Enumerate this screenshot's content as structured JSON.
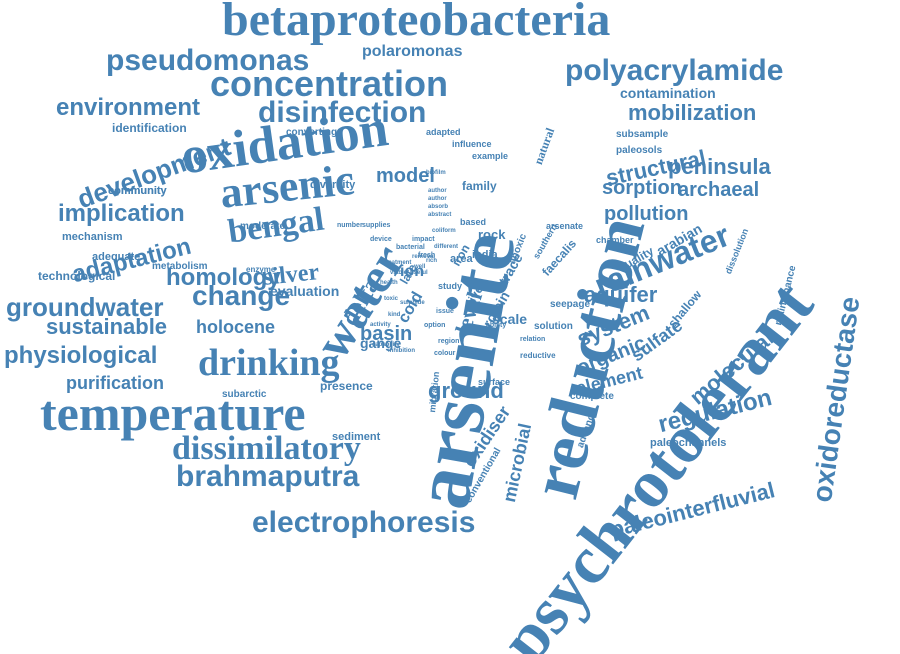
{
  "cloud": {
    "color": "#4682b4",
    "words": [
      "betaproteobacteria",
      "pseudomonas",
      "polaromonas",
      "concentration",
      "polyacrylamide",
      "environment",
      "disinfection",
      "contamination",
      "mobilization",
      "identification",
      "converting",
      "development",
      "oxidation",
      "natural",
      "adapted",
      "subsample",
      "influence",
      "paleosols",
      "example",
      "structural",
      "peninsula",
      "community",
      "diversity",
      "model",
      "family",
      "sorption",
      "archaeal",
      "arsenic",
      "implication",
      "pollution",
      "number",
      "supplies",
      "device",
      "based",
      "mechanism",
      "moderate",
      "adaptation",
      "bengal",
      "water",
      "rainwater",
      "chamber",
      "adequate",
      "metabolism",
      "rock",
      "anoxic",
      "arsenate",
      "technological",
      "homology",
      "silver",
      "quality",
      "arabian",
      "enzyme",
      "iron",
      "india",
      "trace",
      "area",
      "southern",
      "faecalis",
      "change",
      "evaluation",
      "late",
      "ion",
      "study",
      "aquifer",
      "groundwater",
      "delta",
      "level",
      "river",
      "protein",
      "dissolution",
      "shallow",
      "seepage",
      "sustainable",
      "holocene",
      "basin",
      "scale",
      "solution",
      "system",
      "physiological",
      "gange",
      "organic",
      "sulfate",
      "maintenance",
      "drinking",
      "reductive",
      "molecular",
      "surface",
      "element",
      "purification",
      "presence",
      "ground",
      "migration",
      "community",
      "complete",
      "temperature",
      "subarctic",
      "regulation",
      "advance",
      "oxidiser",
      "sediment",
      "microbial",
      "paleochannels",
      "dissimilatory",
      "conventional",
      "oxidoreductase",
      "brahmaputra",
      "paleointerfluvial",
      "electrophoresis",
      "arsenite",
      "reduction",
      "psychrotolerant",
      "cold",
      "fresh",
      "bacterial",
      "impact",
      "filtration",
      "colour",
      "ability",
      "issue",
      "option",
      "region",
      "biofilm",
      "author",
      "absorb",
      "abstract",
      "activity",
      "author",
      "capability",
      "coliform",
      "different",
      "inhibition",
      "removal",
      "rich",
      "sulphide",
      "toxic",
      "viable",
      "health",
      "kind",
      "treatment",
      "useful",
      "well",
      "relation"
    ]
  }
}
